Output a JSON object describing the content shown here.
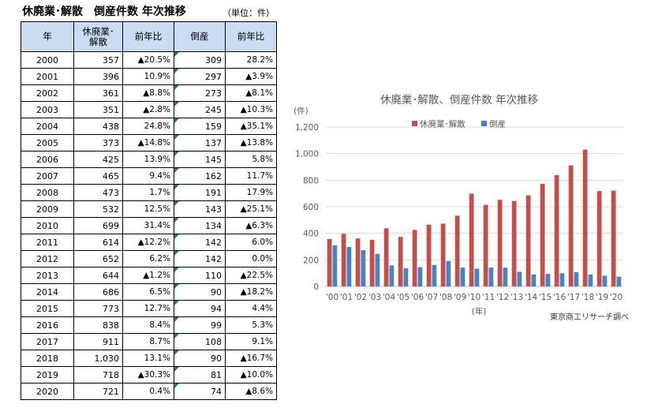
{
  "table": {
    "title": "休廃業･解散　倒産件数 年次推移",
    "unit": "（単位：件）",
    "headers": [
      "年",
      "休廃業･\n解散",
      "前年比",
      "倒産",
      "前年比"
    ],
    "rows": [
      [
        "2000",
        "357",
        "▲20.5%",
        "309",
        "28.2%"
      ],
      [
        "2001",
        "396",
        "10.9%",
        "297",
        "▲3.9%"
      ],
      [
        "2002",
        "361",
        "▲8.8%",
        "273",
        "▲8.1%"
      ],
      [
        "2003",
        "351",
        "▲2.8%",
        "245",
        "▲10.3%"
      ],
      [
        "2004",
        "438",
        "24.8%",
        "159",
        "▲35.1%"
      ],
      [
        "2005",
        "373",
        "▲14.8%",
        "137",
        "▲13.8%"
      ],
      [
        "2006",
        "425",
        "13.9%",
        "145",
        "5.8%"
      ],
      [
        "2007",
        "465",
        "9.4%",
        "162",
        "11.7%"
      ],
      [
        "2008",
        "473",
        "1.7%",
        "191",
        "17.9%"
      ],
      [
        "2009",
        "532",
        "12.5%",
        "143",
        "▲25.1%"
      ],
      [
        "2010",
        "699",
        "31.4%",
        "134",
        "▲6.3%"
      ],
      [
        "2011",
        "614",
        "▲12.2%",
        "142",
        "6.0%"
      ],
      [
        "2012",
        "652",
        "6.2%",
        "142",
        "0.0%"
      ],
      [
        "2013",
        "644",
        "▲1.2%",
        "110",
        "▲22.5%"
      ],
      [
        "2014",
        "686",
        "6.5%",
        "90",
        "▲18.2%"
      ],
      [
        "2015",
        "773",
        "12.7%",
        "94",
        "4.4%"
      ],
      [
        "2016",
        "838",
        "8.4%",
        "99",
        "5.3%"
      ],
      [
        "2017",
        "911",
        "8.7%",
        "108",
        "9.1%"
      ],
      [
        "2018",
        "1,030",
        "13.1%",
        "90",
        "▲16.7%"
      ],
      [
        "2019",
        "718",
        "▲30.3%",
        "81",
        "▲10.0%"
      ],
      [
        "2020",
        "721",
        "0.4%",
        "74",
        "▲8.6%"
      ]
    ]
  },
  "chart_data": {
    "type": "bar",
    "title": "休廃業･解散、倒産件数 年次推移",
    "ylabel": "(件)",
    "xlabel": "(年)",
    "ylim": [
      0,
      1200
    ],
    "yticks": [
      "0",
      "200",
      "400",
      "600",
      "800",
      "1,000",
      "1,200"
    ],
    "categories": [
      "'00",
      "'01",
      "'02",
      "'03",
      "'04",
      "'05",
      "'06",
      "'07",
      "'08",
      "'09",
      "'10",
      "'11",
      "'12",
      "'13",
      "'14",
      "'15",
      "'16",
      "'17",
      "'18",
      "'19",
      "'20"
    ],
    "series": [
      {
        "name": "休廃業･解散",
        "color": "#c0504d",
        "values": [
          357,
          396,
          361,
          351,
          438,
          373,
          425,
          465,
          473,
          532,
          699,
          614,
          652,
          644,
          686,
          773,
          838,
          911,
          1030,
          718,
          721
        ]
      },
      {
        "name": "倒産",
        "color": "#4f81bd",
        "values": [
          309,
          297,
          273,
          245,
          159,
          137,
          145,
          162,
          191,
          143,
          134,
          142,
          142,
          110,
          90,
          94,
          99,
          108,
          90,
          81,
          74
        ]
      }
    ],
    "legend": "top-right",
    "grid": true,
    "source": "東京商工リサーチ調べ"
  }
}
